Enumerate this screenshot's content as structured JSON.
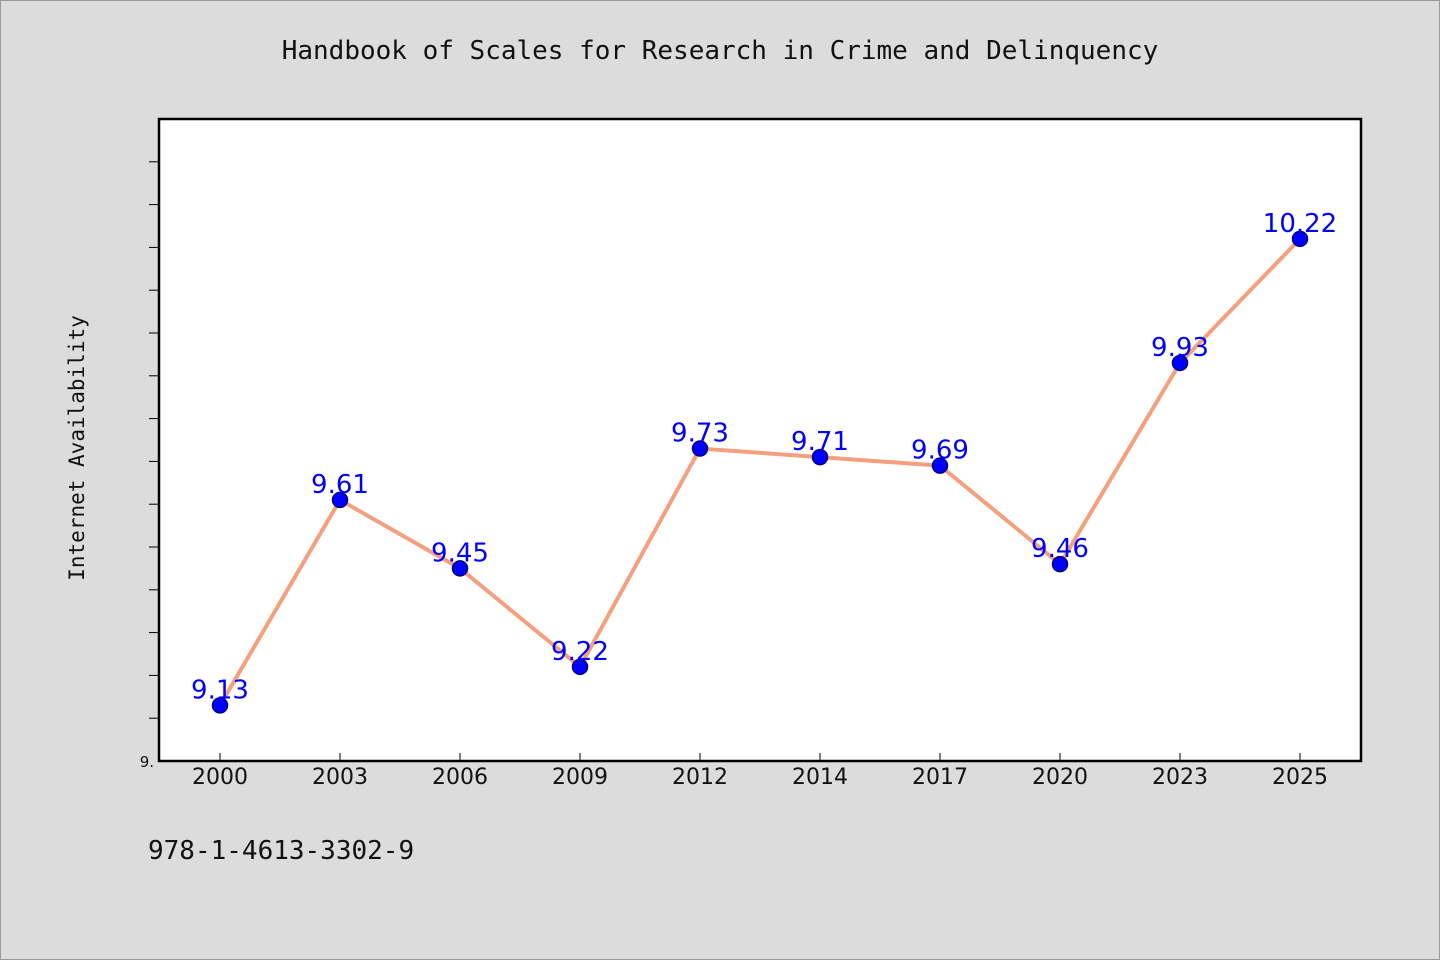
{
  "chart_data": {
    "type": "line",
    "title": "Handbook of Scales for Research in Crime and Delinquency",
    "xlabel": "",
    "ylabel": "Internet Availability",
    "categories": [
      "2000",
      "2003",
      "2006",
      "2009",
      "2012",
      "2014",
      "2017",
      "2020",
      "2023",
      "2025"
    ],
    "series": [
      {
        "values": [
          9.13,
          9.61,
          9.45,
          9.22,
          9.73,
          9.71,
          9.69,
          9.46,
          9.93,
          10.22
        ]
      }
    ],
    "ylim": [
      9.0,
      10.5
    ],
    "y_tick_labels": [
      {
        "value": 9.0,
        "label": "9."
      }
    ],
    "y_minor_tick_step": 0.1,
    "grid": false,
    "legend": "none",
    "show_data_labels": true,
    "colors": {
      "line": "#f4a07e",
      "marker": "#0000ff",
      "marker_edge": "#000080",
      "data_label": "#0000ff",
      "plot_background": "#ffffff",
      "figure_background": "#dcdcdc"
    }
  },
  "footnote": "978-1-4613-3302-9"
}
